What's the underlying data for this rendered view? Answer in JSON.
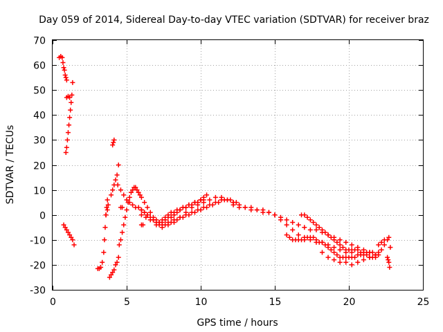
{
  "chart_data": {
    "type": "scatter",
    "title": "Day 059 of 2014, Sidereal Day-to-day VTEC variation (SDTVAR) for receiver braz",
    "xlabel": "GPS time / hours",
    "ylabel": "SDTVAR / TECUs",
    "xlim": [
      0,
      25
    ],
    "ylim": [
      -30,
      70
    ],
    "xticks": [
      0,
      5,
      10,
      15,
      20,
      25
    ],
    "yticks": [
      -30,
      -20,
      -10,
      0,
      10,
      20,
      30,
      40,
      50,
      60,
      70
    ],
    "grid": true,
    "marker": "+",
    "color": "#ff0000",
    "series": [
      {
        "name": "segment-1",
        "x": [
          0.45,
          0.55,
          0.65,
          0.7,
          0.75,
          0.8,
          0.85,
          0.9,
          0.95
        ],
        "y": [
          63,
          63.5,
          63,
          61,
          59,
          58,
          56,
          55,
          54
        ]
      },
      {
        "name": "segment-2",
        "x": [
          0.9,
          0.95,
          1.0,
          1.05,
          1.1,
          1.15,
          1.2,
          1.25,
          1.3,
          1.35
        ],
        "y": [
          25,
          27,
          30,
          33,
          36,
          39,
          42,
          45,
          48,
          53
        ]
      },
      {
        "name": "segment-3",
        "x": [
          0.95,
          1.05,
          1.15
        ],
        "y": [
          47,
          47.5,
          47
        ]
      },
      {
        "name": "segment-4",
        "x": [
          0.75,
          0.85,
          0.95,
          1.05,
          1.15,
          1.25,
          1.35,
          1.45
        ],
        "y": [
          -4,
          -5,
          -6,
          -7,
          -8,
          -9,
          -10,
          -12
        ]
      },
      {
        "name": "segment-5",
        "x": [
          3.05,
          3.15,
          3.25,
          3.35,
          3.45,
          3.5,
          3.55,
          3.6,
          3.65,
          3.7
        ],
        "y": [
          -21.5,
          -21.5,
          -21,
          -19,
          -15,
          -10,
          -5,
          0,
          3,
          6
        ]
      },
      {
        "name": "segment-6",
        "x": [
          3.6,
          3.7,
          3.75
        ],
        "y": [
          0,
          2,
          4
        ]
      },
      {
        "name": "segment-7",
        "x": [
          3.85,
          3.95,
          4.05,
          4.15,
          4.25,
          4.35,
          4.45
        ],
        "y": [
          -25,
          -24,
          -23,
          -22,
          -20,
          -19,
          -17
        ]
      },
      {
        "name": "segment-8",
        "x": [
          3.95,
          4.05,
          4.15,
          4.25,
          4.35,
          4.45
        ],
        "y": [
          8,
          10,
          12,
          14,
          16,
          20
        ]
      },
      {
        "name": "segment-9",
        "x": [
          4.05,
          4.1,
          4.15
        ],
        "y": [
          28,
          29,
          30
        ]
      },
      {
        "name": "segment-10",
        "x": [
          4.5,
          4.6,
          4.7,
          4.8,
          4.9,
          5.0,
          5.1,
          5.2,
          5.3,
          5.4,
          5.5,
          5.6,
          5.7,
          5.8,
          5.9,
          6.0,
          6.2,
          6.4,
          6.6,
          6.8,
          7.0,
          7.2,
          7.4,
          7.6,
          7.8,
          8.0,
          8.2,
          8.4,
          8.6,
          8.8,
          9.0,
          9.2,
          9.4,
          9.6,
          9.8,
          10.0,
          10.2
        ],
        "y": [
          -12,
          -10,
          -7,
          -4,
          -1,
          2,
          5,
          7,
          9,
          10,
          11,
          11,
          10,
          9,
          8,
          7,
          5,
          3,
          1,
          -1,
          -2,
          -3,
          -3,
          -2,
          -1,
          -1,
          0,
          1,
          2,
          3,
          3,
          4,
          4,
          5,
          5,
          6,
          6
        ]
      },
      {
        "name": "segment-11",
        "x": [
          4.4,
          4.6,
          4.8,
          5.0,
          5.2,
          5.4,
          5.6,
          5.8,
          6.0,
          6.2,
          6.4,
          6.6,
          6.8,
          7.0,
          7.2,
          7.4,
          7.6,
          7.8,
          8.0,
          8.2,
          8.4,
          8.6,
          8.8,
          9.0,
          9.2,
          9.4,
          9.6,
          9.8,
          10.0,
          10.2,
          10.4
        ],
        "y": [
          12,
          10,
          8,
          6,
          5,
          4,
          3,
          3,
          2,
          1,
          0,
          -1,
          -2,
          -3,
          -3,
          -2,
          -1,
          0,
          1,
          1,
          2,
          2,
          3,
          3,
          4,
          4,
          5,
          5,
          6,
          7,
          8
        ]
      },
      {
        "name": "segment-12",
        "x": [
          6.0,
          6.2,
          6.4,
          6.6,
          6.8,
          7.0,
          7.2,
          7.4,
          7.6,
          7.8,
          8.0,
          8.2,
          8.4,
          8.6,
          8.8,
          9.0,
          9.2,
          9.4,
          9.6,
          9.8,
          10.0,
          10.2,
          10.4,
          10.6,
          10.8,
          11.0,
          11.2,
          11.4,
          11.6,
          11.8,
          12.0,
          12.2,
          12.4
        ],
        "y": [
          2,
          1,
          0,
          -1,
          -2,
          -3,
          -4,
          -4,
          -4,
          -3,
          -3,
          -2,
          -2,
          -1,
          -1,
          0,
          0,
          1,
          1,
          2,
          2,
          3,
          3,
          4,
          4,
          5,
          5,
          6,
          6,
          6,
          6,
          5,
          5
        ]
      },
      {
        "name": "segment-13",
        "x": [
          6.0,
          6.3,
          6.6,
          7.0,
          7.4,
          7.8,
          8.2,
          8.6,
          9.0,
          9.4,
          9.8,
          10.2,
          10.6,
          11.0,
          11.4,
          11.8,
          12.2,
          12.6,
          13.0,
          13.4,
          13.8,
          14.2,
          14.6,
          15.0,
          15.4,
          15.8,
          16.2,
          16.6,
          17.0,
          17.4,
          17.8,
          18.2,
          18.6,
          19.0,
          19.4,
          19.8,
          20.2
        ],
        "y": [
          0,
          -1,
          -2,
          -4,
          -5,
          -4,
          -3,
          -1,
          1,
          3,
          4,
          5,
          6,
          7,
          7,
          6,
          5,
          4,
          3,
          3,
          2,
          2,
          1,
          0,
          -2,
          -4,
          -6,
          -8,
          -9,
          -10,
          -11,
          -11,
          -12,
          -13,
          -14,
          -15,
          -15
        ]
      },
      {
        "name": "segment-14",
        "x": [
          12.2,
          12.6,
          13.0,
          13.4,
          13.8,
          14.2,
          14.6,
          15.0,
          15.4,
          15.8,
          16.2,
          16.6,
          17.0,
          17.4,
          17.8,
          18.2,
          18.6,
          19.0,
          19.4,
          19.8,
          20.2,
          20.6,
          21.0,
          21.4,
          21.8
        ],
        "y": [
          4,
          3,
          3,
          2,
          2,
          1,
          1,
          0,
          -1,
          -2,
          -3,
          -4,
          -5,
          -6,
          -6,
          -7,
          -8,
          -9,
          -10,
          -11,
          -12,
          -13,
          -14,
          -15,
          -16
        ]
      },
      {
        "name": "segment-15",
        "x": [
          15.8,
          16.0,
          16.2,
          16.4,
          16.6,
          16.8,
          17.0,
          17.2,
          17.4,
          17.6,
          17.8,
          18.0,
          18.2,
          18.4,
          18.6,
          18.8,
          19.0,
          19.2,
          19.4,
          19.6,
          19.8,
          20.0,
          20.2,
          20.4,
          20.6,
          20.8,
          21.0,
          21.2,
          21.4,
          21.6,
          21.8,
          22.0,
          22.2,
          22.4
        ],
        "y": [
          -8,
          -9,
          -10,
          -10,
          -10,
          -10,
          -10,
          -9,
          -9,
          -9,
          -10,
          -11,
          -11,
          -12,
          -13,
          -14,
          -15,
          -16,
          -17,
          -17,
          -17,
          -17,
          -17,
          -17,
          -16,
          -16,
          -16,
          -15,
          -15,
          -15,
          -16,
          -15,
          -14,
          -12
        ]
      },
      {
        "name": "segment-16",
        "x": [
          16.8,
          17.0,
          17.2,
          17.4,
          17.6,
          17.8,
          18.0,
          18.2,
          18.4,
          18.6,
          18.8,
          19.0,
          19.2,
          19.4,
          19.6,
          19.8,
          20.0,
          20.2,
          20.4,
          20.6,
          20.8,
          21.0,
          21.2,
          21.4,
          21.6,
          21.8,
          22.0
        ],
        "y": [
          0,
          0,
          -1,
          -2,
          -3,
          -4,
          -5,
          -6,
          -7,
          -8,
          -9,
          -10,
          -11,
          -12,
          -13,
          -14,
          -14,
          -14,
          -14,
          -14,
          -15,
          -15,
          -16,
          -17,
          -17,
          -17,
          -16
        ]
      },
      {
        "name": "segment-17",
        "x": [
          18.2,
          18.6,
          19.0,
          19.4,
          19.8,
          20.2,
          20.6,
          21.0,
          21.4,
          21.8
        ],
        "y": [
          -15,
          -17,
          -18,
          -19,
          -19,
          -20,
          -19,
          -18,
          -17,
          -16
        ]
      },
      {
        "name": "segment-18",
        "x": [
          22.0,
          22.2,
          22.4,
          22.6,
          22.7
        ],
        "y": [
          -12,
          -11,
          -10,
          -10,
          -9
        ]
      },
      {
        "name": "segment-19",
        "x": [
          22.6,
          22.65,
          22.7,
          22.75
        ],
        "y": [
          -17,
          -18,
          -19,
          -21
        ]
      },
      {
        "name": "segment-20",
        "x": [
          22.8
        ],
        "y": [
          -13
        ]
      },
      {
        "name": "segment-21",
        "x": [
          4.6,
          4.7
        ],
        "y": [
          3,
          3
        ]
      },
      {
        "name": "segment-22",
        "x": [
          6.0,
          6.1
        ],
        "y": [
          -4,
          -4
        ]
      }
    ]
  }
}
